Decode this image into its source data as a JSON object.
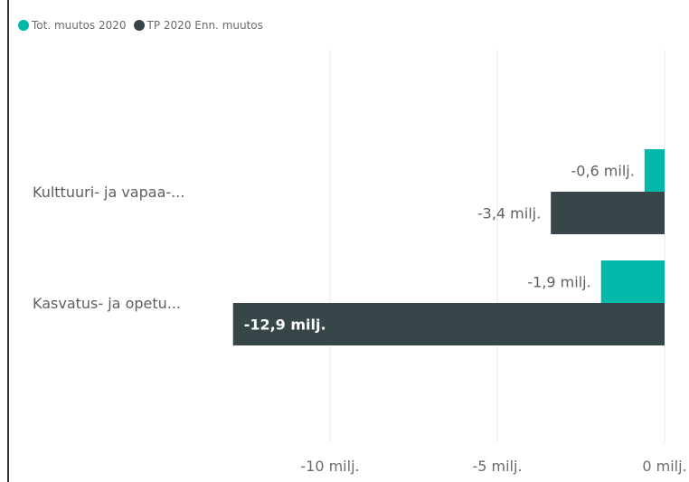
{
  "chart_data": {
    "type": "bar",
    "orientation": "horizontal",
    "title": "",
    "categories": [
      "Kulttuuri- ja vapaa-...",
      "Kasvatus- ja opetu..."
    ],
    "series": [
      {
        "name": "Tot. muutos 2020",
        "color": "#01b8aa",
        "values": [
          -0.6,
          -1.9
        ],
        "labels": [
          "-0,6 milj.",
          "-1,9 milj."
        ]
      },
      {
        "name": "TP 2020 Enn. muutos",
        "color": "#374649",
        "values": [
          -3.4,
          -12.9
        ],
        "labels": [
          "-3,4 milj.",
          "-12,9 milj."
        ]
      }
    ],
    "x_ticks": [
      {
        "value": -10,
        "label": "-10 milj."
      },
      {
        "value": -5,
        "label": "-5 milj."
      },
      {
        "value": 0,
        "label": "0 milj."
      }
    ],
    "xlim": [
      -13.2,
      0
    ],
    "grid": true,
    "legend_position": "top-left"
  }
}
